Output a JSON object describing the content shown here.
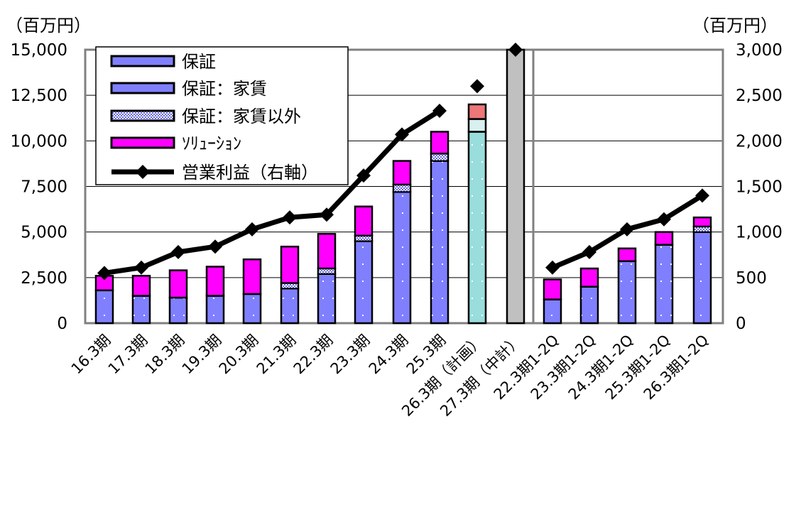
{
  "chart_data": {
    "type": "bar",
    "stacked": true,
    "left_unit": "（百万円）",
    "right_unit": "（百万円）",
    "categories": [
      "16.3期",
      "17.3期",
      "18.3期",
      "19.3期",
      "20.3期",
      "21.3期",
      "22.3期",
      "23.3期",
      "24.3期",
      "25.3期",
      "26.3期（計画）",
      "27.3期（中計）",
      "22.3期1-2Q",
      "23.3期1-2Q",
      "24.3期1-2Q",
      "25.3期1-2Q",
      "26.3期1-2Q"
    ],
    "y_left": {
      "min": 0,
      "max": 15000,
      "ticks": [
        "0",
        "2,500",
        "5,000",
        "7,500",
        "10,000",
        "12,500",
        "15,000"
      ]
    },
    "y_right": {
      "min": 0,
      "max": 3000,
      "ticks": [
        "0",
        "500",
        "1,000",
        "1,500",
        "2,000",
        "2,500",
        "3,000"
      ]
    },
    "grid": true,
    "legend_position": "top-left",
    "legend": [
      "保証",
      "保証：家賃",
      "保証：家賃以外",
      "ｿﾘｭｰｼｮﾝ",
      "営業利益（右軸）"
    ],
    "series": [
      {
        "name": "保証",
        "color": "#8080ff",
        "values": [
          1800,
          1500,
          1400,
          1500,
          1600,
          1900,
          2700,
          4500,
          7200,
          8900,
          null,
          null,
          1300,
          2000,
          3400,
          4300,
          5000
        ]
      },
      {
        "name": "保証：家賃以外",
        "color": "#d0d0ff",
        "values": [
          null,
          null,
          null,
          null,
          null,
          300,
          300,
          300,
          400,
          400,
          null,
          null,
          null,
          null,
          null,
          null,
          300
        ]
      },
      {
        "name": "ｿﾘｭｰｼｮﾝ",
        "color": "#ff00ff",
        "values": [
          800,
          1100,
          1500,
          1600,
          1900,
          2000,
          1900,
          1600,
          1300,
          1200,
          null,
          null,
          1100,
          1000,
          700,
          700,
          500
        ]
      },
      {
        "name": "26.3期（計画）",
        "colors": [
          "#99dddd",
          "#d8f0f0",
          "#ee7777"
        ],
        "values": [
          null,
          null,
          null,
          null,
          null,
          null,
          null,
          null,
          null,
          null,
          [
            10500,
            700,
            800
          ],
          null,
          null,
          null,
          null,
          null,
          null
        ]
      },
      {
        "name": "27.3期（中計）",
        "color": "#c0c0c0",
        "values": [
          null,
          null,
          null,
          null,
          null,
          null,
          null,
          null,
          null,
          null,
          null,
          15000,
          null,
          null,
          null,
          null,
          null
        ]
      },
      {
        "name": "営業利益（右軸）",
        "type": "line",
        "axis": "right",
        "color": "#000000",
        "values": [
          550,
          610,
          780,
          840,
          1030,
          1160,
          1190,
          1620,
          2070,
          2330,
          2600,
          3000,
          610,
          780,
          1030,
          1140,
          1400
        ]
      }
    ]
  }
}
